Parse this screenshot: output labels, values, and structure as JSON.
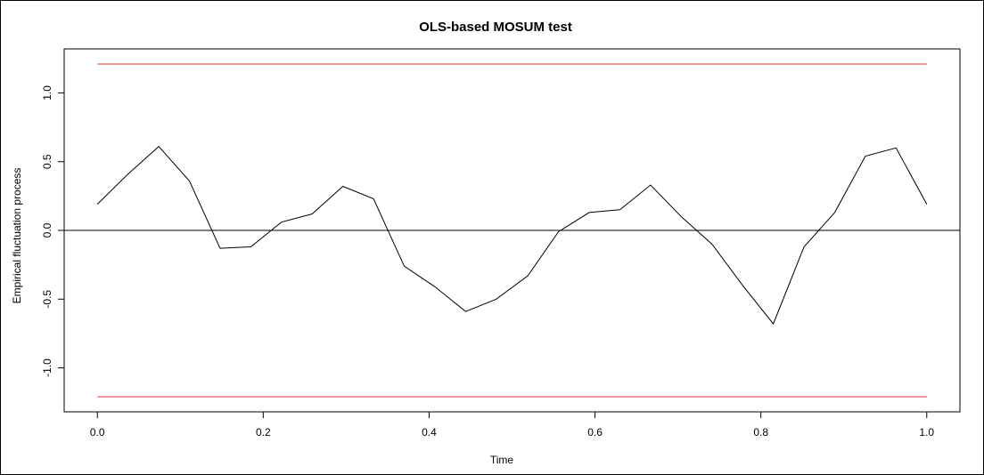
{
  "chart_data": {
    "type": "line",
    "title": "OLS-based MOSUM test",
    "xlabel": "Time",
    "ylabel": "Empirical fluctuation process",
    "xlim": [
      -0.04,
      1.04
    ],
    "ylim": [
      -1.32,
      1.32
    ],
    "x_ticks": [
      "0.0",
      "0.2",
      "0.4",
      "0.6",
      "0.8",
      "1.0"
    ],
    "y_ticks": [
      "-1.0",
      "-0.5",
      "0.0",
      "0.5",
      "1.0"
    ],
    "grid": false,
    "boundary": 1.21,
    "reference_line": 0.0,
    "colors": {
      "process": "#000000",
      "boundary": "#dd3333",
      "axis": "#000000"
    },
    "series": [
      {
        "x": [
          0.0,
          0.037,
          0.074,
          0.111,
          0.148,
          0.185,
          0.222,
          0.259,
          0.296,
          0.333,
          0.37,
          0.407,
          0.444,
          0.481,
          0.519,
          0.556,
          0.593,
          0.63,
          0.667,
          0.704,
          0.741,
          0.778,
          0.815,
          0.852,
          0.889,
          0.926,
          0.963,
          1.0
        ],
        "y": [
          0.19,
          0.41,
          0.61,
          0.36,
          -0.13,
          -0.12,
          0.06,
          0.12,
          0.32,
          0.23,
          -0.26,
          -0.41,
          -0.59,
          -0.5,
          -0.33,
          -0.01,
          0.13,
          0.15,
          0.33,
          0.1,
          -0.1,
          -0.4,
          -0.68,
          -0.12,
          0.13,
          0.54,
          0.6,
          0.19
        ]
      }
    ]
  }
}
